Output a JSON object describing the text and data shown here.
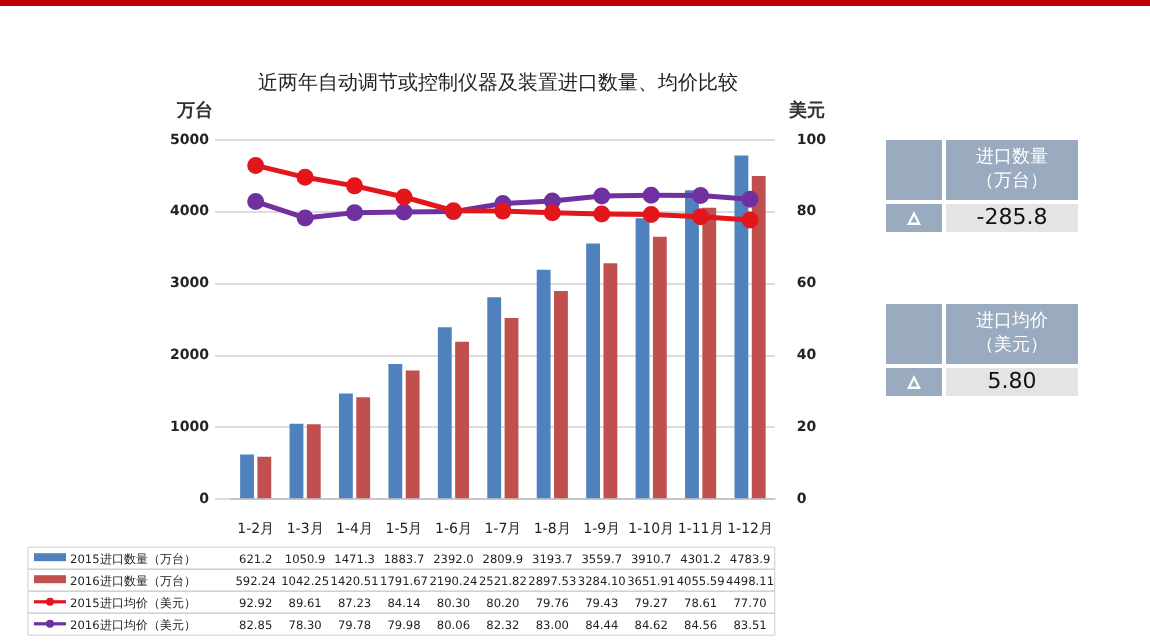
{
  "chart_data": {
    "type": "bar",
    "title": "近两年自动调节或控制仪器及装置进口数量、均价比较",
    "ylabel": "万台",
    "y2label": "美元",
    "categories": [
      "1-2月",
      "1-3月",
      "1-4月",
      "1-5月",
      "1-6月",
      "1-7月",
      "1-8月",
      "1-9月",
      "1-10月",
      "1-11月",
      "1-12月"
    ],
    "series": [
      {
        "name": "2015进口数量（万台）",
        "color": "#4f81bd",
        "values": [
          621.2,
          1050.9,
          1471.3,
          1883.7,
          2392.0,
          2809.9,
          3193.7,
          3559.7,
          3910.7,
          4301.2,
          4783.9
        ],
        "value_labels": [
          "621.2",
          "1050.9",
          "1471.3",
          "1883.7",
          "2392.0",
          "2809.9",
          "3193.7",
          "3559.7",
          "3910.7",
          "4301.2",
          "4783.9"
        ]
      },
      {
        "name": "2016进口数量（万台）",
        "color": "#c0504d",
        "values": [
          592.24,
          1042.25,
          1420.51,
          1791.67,
          2190.24,
          2521.82,
          2897.53,
          3284.1,
          3651.91,
          4055.59,
          4498.11
        ],
        "value_labels": [
          "592.24",
          "1042.25",
          "1420.51",
          "1791.67",
          "2190.24",
          "2521.82",
          "2897.53",
          "3284.10",
          "3651.91",
          "4055.59",
          "4498.11"
        ]
      },
      {
        "name": "2015进口均价（美元）",
        "type": "line",
        "axis": "y2",
        "color": "#e3161c",
        "values": [
          92.92,
          89.61,
          87.23,
          84.14,
          80.3,
          80.2,
          79.76,
          79.43,
          79.27,
          78.61,
          77.7
        ],
        "value_labels": [
          "92.92",
          "89.61",
          "87.23",
          "84.14",
          "80.30",
          "80.20",
          "79.76",
          "79.43",
          "79.27",
          "78.61",
          "77.70"
        ]
      },
      {
        "name": "2016进口均价（美元）",
        "type": "line",
        "axis": "y2",
        "color": "#7030a0",
        "values": [
          82.85,
          78.3,
          79.78,
          79.98,
          80.06,
          82.32,
          83.0,
          84.44,
          84.62,
          84.56,
          83.51
        ],
        "value_labels": [
          "82.85",
          "78.30",
          "79.78",
          "79.98",
          "80.06",
          "82.32",
          "83.00",
          "84.44",
          "84.62",
          "84.56",
          "83.51"
        ]
      }
    ],
    "ylim": [
      0,
      5000
    ],
    "yticks": [
      0,
      1000,
      2000,
      3000,
      4000,
      5000
    ],
    "y2lim": [
      0,
      100
    ],
    "y2ticks": [
      0,
      20,
      40,
      60,
      80,
      100
    ],
    "grid": "y",
    "marker": "circle",
    "legend": "bottom",
    "data_labels": true,
    "annotations": [
      "进口数量（万台）",
      "-285.8",
      "进口均价（美元）",
      "5.80"
    ]
  }
}
